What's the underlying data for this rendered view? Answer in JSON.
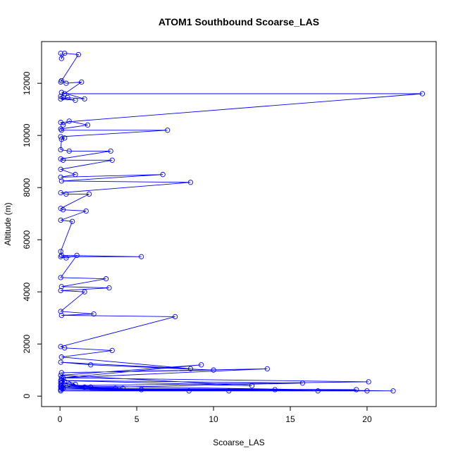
{
  "chart_data": {
    "type": "line",
    "title": "ATOM1 Southbound Scoarse_LAS",
    "xlabel": "Scoarse_LAS",
    "ylabel": "Altitude (m)",
    "xlim": [
      -1.2,
      24.5
    ],
    "ylim": [
      -400,
      13600
    ],
    "xticks": [
      0,
      5,
      10,
      15,
      20
    ],
    "yticks": [
      0,
      2000,
      4000,
      6000,
      8000,
      10000,
      12000
    ],
    "grid": false,
    "legend": "none",
    "color": "#0000ff",
    "marker": "open-circle",
    "series": [
      {
        "x": [
          0.05,
          0.1,
          0.3,
          1.2,
          0.05,
          0.1,
          0.4,
          1.4,
          0.05,
          0.2,
          1.0,
          0.05,
          0.5,
          1.6,
          0.1,
          0.3,
          23.6,
          0.05,
          0.2,
          0.6,
          1.8,
          0.05,
          0.1,
          7.0,
          0.05,
          0.3,
          0.1,
          0.05,
          0.6,
          3.3,
          0.05,
          0.2,
          3.4,
          0.05,
          1.0,
          0.05,
          6.7,
          0.1,
          8.5,
          0.05,
          0.4,
          1.9,
          0.05,
          0.2,
          1.7,
          0.05,
          0.8,
          0.05,
          0.1,
          5.3,
          0.05,
          0.4,
          1.1,
          0.05,
          3.0,
          0.1,
          3.2,
          0.05,
          1.6,
          0.05,
          2.2,
          0.1,
          7.5,
          0.05,
          0.3,
          3.4,
          0.1,
          8.5,
          0.05,
          2.0,
          10.0,
          0.1,
          13.5,
          0.2,
          20.1,
          0.1,
          21.7,
          0.05,
          19.3,
          0.2,
          16.8,
          0.05,
          11.0,
          0.1,
          5.3,
          0.05,
          3.6,
          0.2,
          2.0,
          0.05,
          1.0,
          0.1,
          9.2,
          0.05,
          12.5,
          0.1,
          15.8,
          0.1,
          20.0,
          0.05,
          14.0,
          0.2,
          8.4,
          0.1,
          4.1,
          0.05,
          1.6,
          0.1,
          0.6,
          0.05,
          0.3,
          0.1
        ],
        "y": [
          13150,
          12950,
          13150,
          13100,
          12050,
          12100,
          12000,
          12050,
          11500,
          11450,
          11350,
          11400,
          11450,
          11400,
          11650,
          11600,
          11600,
          10500,
          10400,
          10550,
          10400,
          10250,
          10200,
          10200,
          9950,
          9900,
          9850,
          9450,
          9400,
          9400,
          9100,
          9050,
          9050,
          8700,
          8500,
          8400,
          8500,
          8250,
          8200,
          7800,
          7750,
          7750,
          7200,
          7150,
          7100,
          6750,
          6700,
          5550,
          5400,
          5350,
          5350,
          5300,
          5400,
          4550,
          4500,
          4200,
          4150,
          4050,
          4000,
          3250,
          3150,
          3100,
          3050,
          1900,
          1850,
          1750,
          1500,
          1050,
          1300,
          1200,
          1000,
          900,
          1050,
          700,
          550,
          400,
          200,
          250,
          250,
          300,
          200,
          250,
          200,
          300,
          250,
          350,
          300,
          400,
          350,
          500,
          450,
          700,
          1200,
          800,
          400,
          600,
          500,
          300,
          200,
          200,
          250,
          300,
          200,
          350,
          300,
          400,
          350,
          500,
          450,
          600,
          550,
          700
        ]
      }
    ]
  }
}
